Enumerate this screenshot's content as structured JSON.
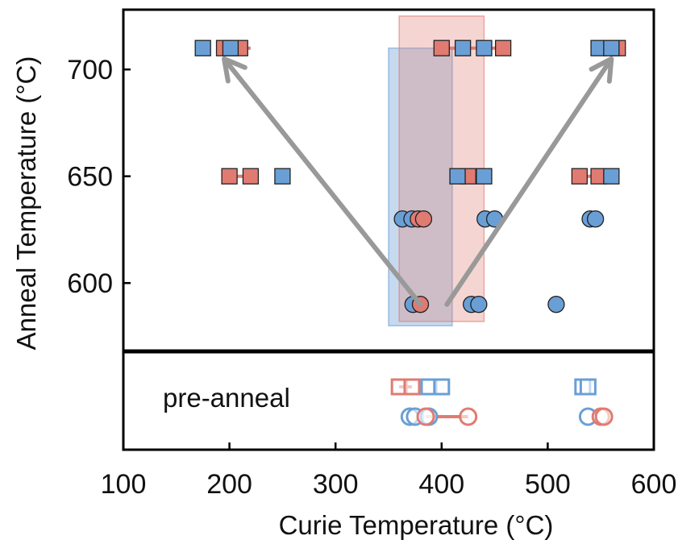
{
  "chart_data": {
    "type": "scatter",
    "xlabel": "Curie Temperature (°C)",
    "ylabel": "Anneal Temperature (°C)",
    "xlim": [
      100,
      600
    ],
    "ylim": [
      568,
      728
    ],
    "x_ticks": [
      100,
      200,
      300,
      400,
      500,
      600
    ],
    "y_ticks": [
      600,
      650,
      700
    ],
    "lower_panel_label": "pre-anneal",
    "colors": {
      "red": "#e07b72",
      "blue": "#6a9fd6",
      "arrow": "#999999"
    },
    "bands": [
      {
        "color": "blue",
        "x": [
          350,
          410
        ],
        "y": [
          580,
          710
        ]
      },
      {
        "color": "red",
        "x": [
          360,
          440
        ],
        "y": [
          582,
          725
        ]
      }
    ],
    "arrows": [
      {
        "from": [
          380,
          590
        ],
        "to": [
          195,
          705
        ]
      },
      {
        "from": [
          405,
          590
        ],
        "to": [
          560,
          705
        ]
      }
    ],
    "series": [
      {
        "marker": "square",
        "color": "red",
        "points": [
          {
            "x": 195,
            "y": 710
          },
          {
            "x": 210,
            "y": 710
          },
          {
            "x": 400,
            "y": 710
          },
          {
            "x": 458,
            "y": 710
          },
          {
            "x": 566,
            "y": 710
          },
          {
            "x": 200,
            "y": 650
          },
          {
            "x": 220,
            "y": 650
          },
          {
            "x": 425,
            "y": 650
          },
          {
            "x": 530,
            "y": 650
          },
          {
            "x": 548,
            "y": 650
          }
        ],
        "links": [
          [
            195,
            220,
            710
          ],
          [
            400,
            458,
            710
          ],
          [
            200,
            220,
            650
          ],
          [
            425,
            440,
            650
          ],
          [
            530,
            560,
            650
          ]
        ]
      },
      {
        "marker": "square",
        "color": "blue",
        "points": [
          {
            "x": 175,
            "y": 710
          },
          {
            "x": 201,
            "y": 710
          },
          {
            "x": 420,
            "y": 710
          },
          {
            "x": 440,
            "y": 710
          },
          {
            "x": 548,
            "y": 710
          },
          {
            "x": 560,
            "y": 710
          },
          {
            "x": 250,
            "y": 650
          },
          {
            "x": 415,
            "y": 650
          },
          {
            "x": 440,
            "y": 650
          },
          {
            "x": 560,
            "y": 650
          }
        ],
        "links": []
      },
      {
        "marker": "circle",
        "color": "blue",
        "points": [
          {
            "x": 363,
            "y": 630
          },
          {
            "x": 372,
            "y": 630
          },
          {
            "x": 441,
            "y": 630
          },
          {
            "x": 450,
            "y": 630
          },
          {
            "x": 540,
            "y": 630
          },
          {
            "x": 545,
            "y": 630
          },
          {
            "x": 373,
            "y": 590
          },
          {
            "x": 428,
            "y": 590
          },
          {
            "x": 435,
            "y": 590
          },
          {
            "x": 508,
            "y": 590
          }
        ],
        "links": []
      },
      {
        "marker": "circle",
        "color": "red",
        "points": [
          {
            "x": 378,
            "y": 630
          },
          {
            "x": 383,
            "y": 630
          },
          {
            "x": 380,
            "y": 590
          }
        ],
        "links": [
          [
            375,
            383,
            630
          ],
          [
            374,
            380,
            590
          ]
        ]
      }
    ],
    "pre_anneal": [
      {
        "marker": "square-open",
        "color": "red",
        "x": [
          360,
          372
        ],
        "link": [
          360,
          372
        ],
        "row": "top"
      },
      {
        "marker": "square-open",
        "color": "blue",
        "x": [
          388,
          400,
          533,
          538
        ],
        "row": "top"
      },
      {
        "marker": "circle-open",
        "color": "blue",
        "x": [
          370,
          375,
          388,
          538
        ],
        "row": "bottom"
      },
      {
        "marker": "circle-open",
        "color": "red",
        "x": [
          385,
          425,
          550,
          553
        ],
        "link": [
          385,
          425
        ],
        "row": "bottom"
      }
    ]
  }
}
